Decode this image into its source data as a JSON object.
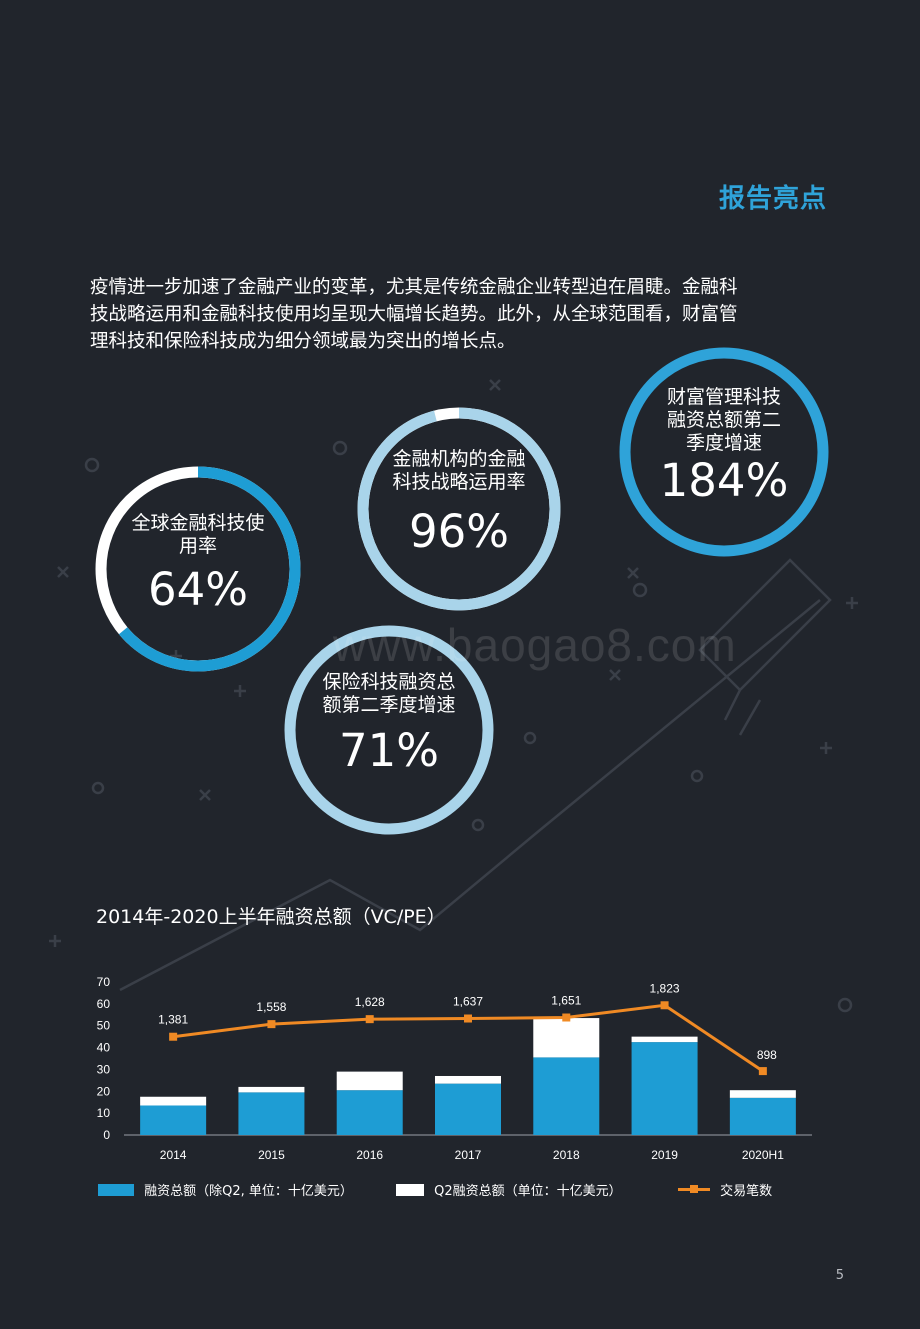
{
  "header": {
    "title": "报告亮点"
  },
  "intro": {
    "line1": "疫情进一步加速了金融产业的变革，尤其是传统金融企业转型迫在眉睫。金融科",
    "line2": "技战略运用和金融科技使用均呈现大幅增长趋势。此外，从全球范围看，财富管",
    "line3": "理科技和保险科技成为细分领域最为突出的增长点。"
  },
  "stats": [
    {
      "label_line1": "全球金融科技使",
      "label_line2": "用率",
      "value": "64%",
      "fraction": 0.64
    },
    {
      "label_line1": "金融机构的金融",
      "label_line2": "科技战略运用率",
      "value": "96%",
      "fraction": 0.96
    },
    {
      "label_line1": "财富管理科技",
      "label_line2": "融资总额第二",
      "label_line3": "季度增速",
      "value": "184%"
    },
    {
      "label_line1": "保险科技融资总",
      "label_line2": "额第二季度增速",
      "value": "71%"
    }
  ],
  "watermark": "www.baogao8.com",
  "colors": {
    "accent": "#2fa3d9",
    "bar": "#1e9dd4",
    "bar_q2": "#ffffff",
    "line": "#f08a24",
    "ring_light": "#a9d4ea",
    "background": "#21252c"
  },
  "chart_title": "2014年-2020上半年融资总额（VC/PE）",
  "chart_data": {
    "type": "bar",
    "categories": [
      "2014",
      "2015",
      "2016",
      "2017",
      "2018",
      "2019",
      "2020H1"
    ],
    "ylim": [
      0,
      70
    ],
    "yticks": [
      "0",
      "10",
      "20",
      "30",
      "40",
      "50",
      "60",
      "70"
    ],
    "series": [
      {
        "name": "融资总额（除Q2, 单位：十亿美元）",
        "values": [
          13.5,
          19.5,
          20.5,
          23.5,
          35.5,
          42.5,
          17.0
        ]
      },
      {
        "name": "Q2融资总额（单位：十亿美元）",
        "values": [
          4.0,
          2.5,
          8.5,
          3.5,
          18.0,
          2.5,
          3.5
        ]
      },
      {
        "name": "交易笔数",
        "values": [
          1381,
          1558,
          1628,
          1637,
          1651,
          1823,
          898
        ],
        "labels": [
          "1,381",
          "1,558",
          "1,628",
          "1,637",
          "1,651",
          "1,823",
          "898"
        ]
      }
    ]
  },
  "legend": {
    "item1": "融资总额（除Q2, 单位：十亿美元）",
    "item2": "Q2融资总额（单位：十亿美元）",
    "item3": "交易笔数"
  },
  "page_number": "5"
}
